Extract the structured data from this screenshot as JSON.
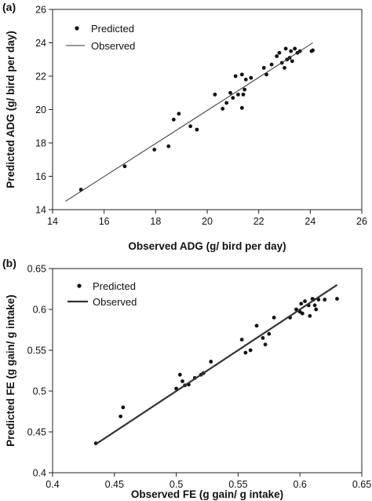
{
  "chart_data": [
    {
      "type": "scatter",
      "panel_label": "(a)",
      "xlabel": "Observed ADG (g/ bird per day)",
      "ylabel": "Predicted ADG (g/ bird per day)",
      "xlim": [
        14,
        26
      ],
      "ylim": [
        14,
        26
      ],
      "xticks": [
        "14",
        "16",
        "18",
        "20",
        "22",
        "24",
        "26"
      ],
      "yticks": [
        "14",
        "16",
        "18",
        "20",
        "22",
        "24",
        "26"
      ],
      "grid": false,
      "legend_position": "top-left",
      "series": [
        {
          "name": "Predicted",
          "mark": "point",
          "x": [
            15.1,
            16.8,
            17.95,
            18.5,
            18.7,
            18.9,
            19.35,
            19.6,
            20.3,
            20.6,
            20.75,
            20.9,
            21.0,
            21.1,
            21.2,
            21.35,
            21.35,
            21.4,
            21.45,
            21.5,
            21.7,
            22.2,
            22.3,
            22.5,
            22.7,
            22.8,
            22.9,
            23.0,
            23.05,
            23.1,
            23.2,
            23.25,
            23.3,
            23.4,
            23.5,
            23.6,
            24.05,
            24.1
          ],
          "y": [
            15.2,
            16.6,
            17.6,
            17.8,
            19.4,
            19.75,
            19.0,
            18.8,
            20.9,
            20.05,
            20.4,
            21.0,
            20.7,
            22.0,
            20.9,
            20.1,
            22.1,
            20.9,
            21.2,
            21.8,
            21.9,
            22.5,
            22.1,
            22.7,
            23.2,
            23.4,
            22.8,
            22.5,
            23.65,
            23.0,
            23.1,
            23.5,
            22.9,
            23.65,
            23.4,
            23.5,
            23.5,
            23.55
          ]
        },
        {
          "name": "Observed",
          "mark": "line",
          "x": [
            14.5,
            24.1
          ],
          "y": [
            14.5,
            24.0
          ]
        }
      ]
    },
    {
      "type": "scatter",
      "panel_label": "(b)",
      "xlabel": "Observed FE (g gain/ g intake)",
      "ylabel": "Predicted FE (g gain/ g intake)",
      "xlim": [
        0.4,
        0.65
      ],
      "ylim": [
        0.4,
        0.65
      ],
      "xticks": [
        "0.4",
        "0.45",
        "0.5",
        "0.55",
        "0.6",
        "0.65"
      ],
      "yticks": [
        "0.4",
        "0.45",
        "0.5",
        "0.55",
        "0.6",
        "0.65"
      ],
      "grid": false,
      "legend_position": "top-left",
      "series": [
        {
          "name": "Predicted",
          "mark": "point",
          "x": [
            0.435,
            0.455,
            0.457,
            0.5,
            0.503,
            0.505,
            0.507,
            0.51,
            0.515,
            0.52,
            0.522,
            0.528,
            0.553,
            0.556,
            0.56,
            0.565,
            0.57,
            0.572,
            0.575,
            0.579,
            0.592,
            0.597,
            0.6,
            0.601,
            0.602,
            0.604,
            0.607,
            0.608,
            0.61,
            0.611,
            0.612,
            0.613,
            0.615,
            0.62,
            0.63
          ],
          "y": [
            0.436,
            0.469,
            0.48,
            0.503,
            0.52,
            0.512,
            0.507,
            0.508,
            0.516,
            0.52,
            0.522,
            0.536,
            0.563,
            0.547,
            0.55,
            0.58,
            0.565,
            0.557,
            0.57,
            0.59,
            0.59,
            0.6,
            0.597,
            0.607,
            0.595,
            0.61,
            0.605,
            0.592,
            0.613,
            0.612,
            0.605,
            0.6,
            0.612,
            0.612,
            0.613
          ]
        },
        {
          "name": "Observed",
          "mark": "line",
          "x": [
            0.435,
            0.63
          ],
          "y": [
            0.435,
            0.63
          ]
        }
      ]
    }
  ]
}
